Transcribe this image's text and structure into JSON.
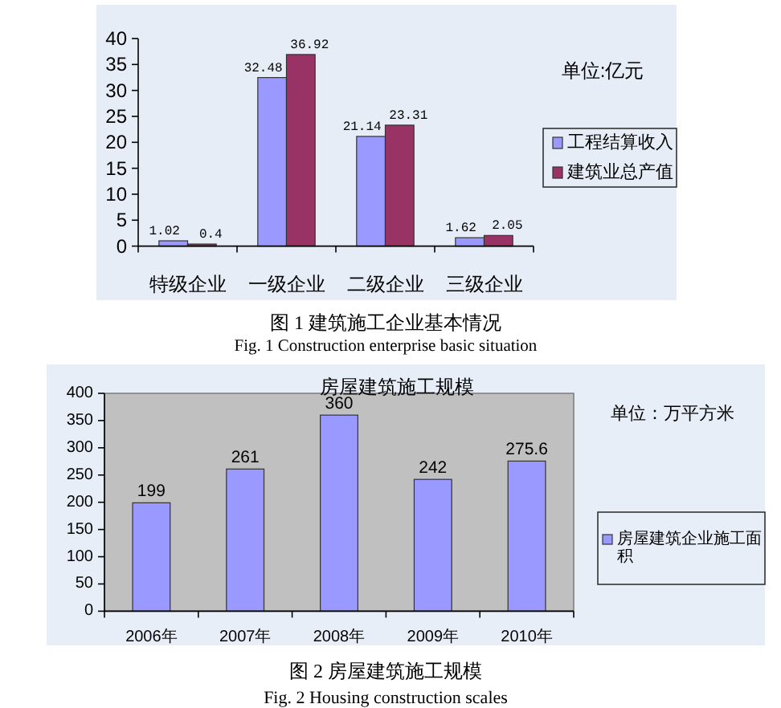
{
  "chart_data": [
    {
      "type": "bar",
      "categories": [
        "特级企业",
        "一级企业",
        "二级企业",
        "三级企业"
      ],
      "series": [
        {
          "name": "工程结算收入",
          "color": "#9999ff",
          "values": [
            1.02,
            32.48,
            21.14,
            1.62
          ]
        },
        {
          "name": "建筑业总产值",
          "color": "#993366",
          "values": [
            0.4,
            36.92,
            23.31,
            2.05
          ]
        }
      ],
      "ylim": [
        0,
        40
      ],
      "yticks": [
        0,
        5,
        10,
        15,
        20,
        25,
        30,
        35,
        40
      ],
      "data_labels": true,
      "legend": "right",
      "annotations": [
        "单位:亿元",
        "图 1 建筑施工企业基本情况",
        "Fig. 1 Construction enterprise basic situation"
      ]
    },
    {
      "type": "bar",
      "title": "房屋建筑施工规模",
      "categories": [
        "2006年",
        "2007年",
        "2008年",
        "2009年",
        "2010年"
      ],
      "series": [
        {
          "name": "房屋建筑企业施工面积",
          "color": "#9999ff",
          "values": [
            199,
            261,
            360,
            242,
            275.6
          ]
        }
      ],
      "ylim": [
        0,
        400
      ],
      "yticks": [
        0,
        50,
        100,
        150,
        200,
        250,
        300,
        350,
        400
      ],
      "data_labels": true,
      "legend": "right",
      "annotations": [
        "单位：万平方米",
        "图 2 房屋建筑施工规模",
        "Fig. 2 Housing construction scales"
      ]
    }
  ]
}
